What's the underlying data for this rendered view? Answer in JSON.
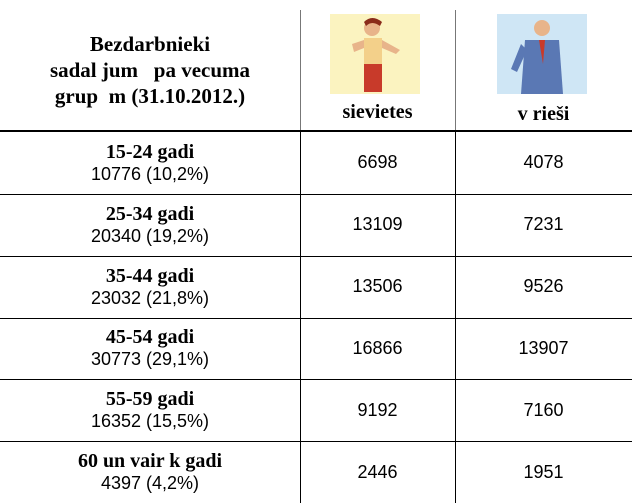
{
  "header": {
    "title": [
      "Bezdarbnieki",
      "sadal jum   pa vecuma",
      "grup  m (31.10.2012.)"
    ],
    "columns": [
      "sievietes",
      "v rieši"
    ]
  },
  "table": {
    "rows": [
      {
        "label": "15-24 gadi",
        "total": "10776 (10,2%)",
        "women": 6698,
        "men": 4078
      },
      {
        "label": "25-34 gadi",
        "total": "20340 (19,2%)",
        "women": 13109,
        "men": 7231
      },
      {
        "label": "35-44 gadi",
        "total": "23032 (21,8%)",
        "women": 13506,
        "men": 9526
      },
      {
        "label": "45-54 gadi",
        "total": "30773 (29,1%)",
        "women": 16866,
        "men": 13907
      },
      {
        "label": "55-59 gadi",
        "total": "16352 (15,5%)",
        "women": 9192,
        "men": 7160
      },
      {
        "label": "60 un vair  k gadi",
        "total": "4397 (4,2%)",
        "women": 2446,
        "men": 1951
      }
    ]
  }
}
